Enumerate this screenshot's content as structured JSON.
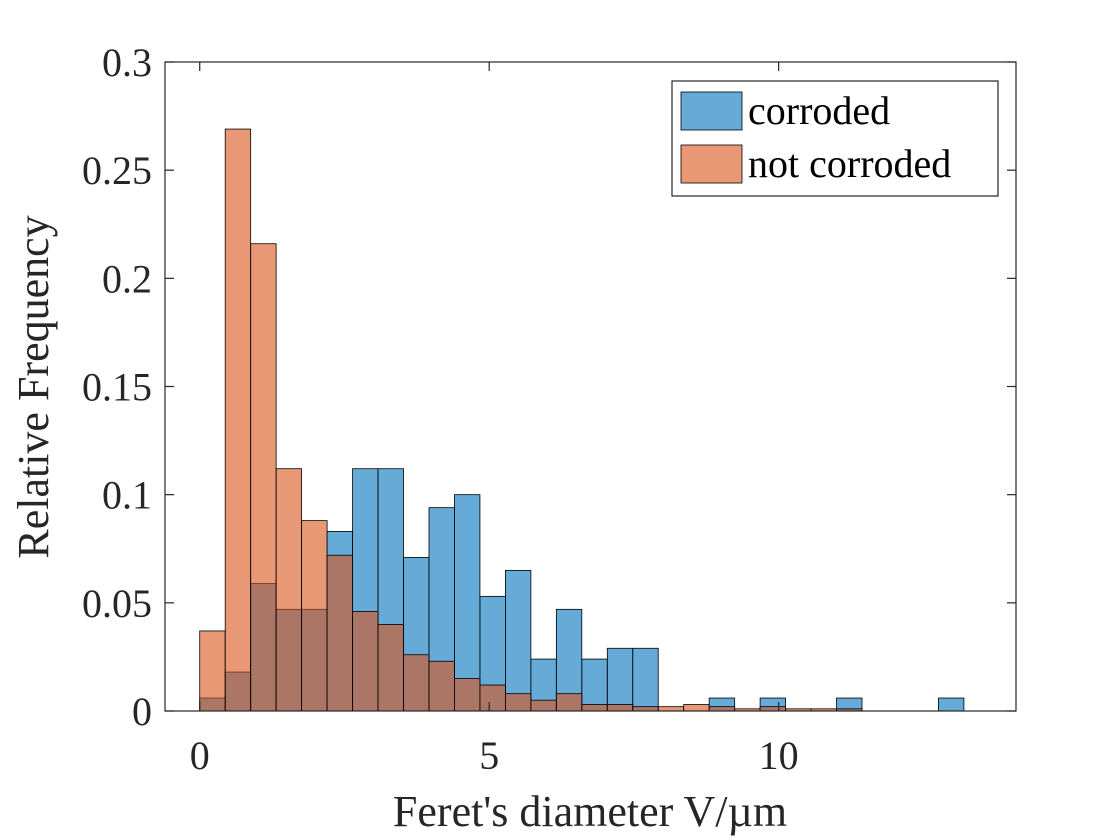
{
  "chart_data": {
    "type": "bar",
    "title": "",
    "xlabel": "Feret's diameter V/µm",
    "ylabel": "Relative Frequency",
    "xlim": [
      -0.6,
      14.1
    ],
    "ylim": [
      0,
      0.3
    ],
    "xticks": [
      0,
      5,
      10
    ],
    "yticks": [
      0,
      0.05,
      0.1,
      0.15,
      0.2,
      0.25,
      0.3
    ],
    "ytick_labels": [
      "0",
      "0.05",
      "0.1",
      "0.15",
      "0.2",
      "0.25",
      "0.3"
    ],
    "grid": false,
    "legend_position": "top-right",
    "bin_width": 0.44,
    "series": [
      {
        "name": "corroded",
        "color": "#0072BD",
        "bins": [
          {
            "x": 0.0,
            "value": 0.006
          },
          {
            "x": 0.44,
            "value": 0.018
          },
          {
            "x": 0.88,
            "value": 0.059
          },
          {
            "x": 1.32,
            "value": 0.047
          },
          {
            "x": 1.76,
            "value": 0.047
          },
          {
            "x": 2.2,
            "value": 0.083
          },
          {
            "x": 2.64,
            "value": 0.112
          },
          {
            "x": 3.08,
            "value": 0.112
          },
          {
            "x": 3.52,
            "value": 0.071
          },
          {
            "x": 3.96,
            "value": 0.094
          },
          {
            "x": 4.4,
            "value": 0.1
          },
          {
            "x": 4.84,
            "value": 0.053
          },
          {
            "x": 5.28,
            "value": 0.065
          },
          {
            "x": 5.72,
            "value": 0.024
          },
          {
            "x": 6.16,
            "value": 0.047
          },
          {
            "x": 6.6,
            "value": 0.024
          },
          {
            "x": 7.04,
            "value": 0.029
          },
          {
            "x": 7.48,
            "value": 0.029
          },
          {
            "x": 8.8,
            "value": 0.006
          },
          {
            "x": 9.68,
            "value": 0.006
          },
          {
            "x": 11.0,
            "value": 0.006
          },
          {
            "x": 12.76,
            "value": 0.006
          }
        ]
      },
      {
        "name": "not corroded",
        "color": "#D95319",
        "bins": [
          {
            "x": 0.0,
            "value": 0.037
          },
          {
            "x": 0.44,
            "value": 0.269
          },
          {
            "x": 0.88,
            "value": 0.216
          },
          {
            "x": 1.32,
            "value": 0.112
          },
          {
            "x": 1.76,
            "value": 0.088
          },
          {
            "x": 2.2,
            "value": 0.072
          },
          {
            "x": 2.64,
            "value": 0.046
          },
          {
            "x": 3.08,
            "value": 0.04
          },
          {
            "x": 3.52,
            "value": 0.026
          },
          {
            "x": 3.96,
            "value": 0.023
          },
          {
            "x": 4.4,
            "value": 0.015
          },
          {
            "x": 4.84,
            "value": 0.012
          },
          {
            "x": 5.28,
            "value": 0.008
          },
          {
            "x": 5.72,
            "value": 0.005
          },
          {
            "x": 6.16,
            "value": 0.008
          },
          {
            "x": 6.6,
            "value": 0.003
          },
          {
            "x": 7.04,
            "value": 0.003
          },
          {
            "x": 7.48,
            "value": 0.002
          },
          {
            "x": 7.92,
            "value": 0.002
          },
          {
            "x": 8.36,
            "value": 0.003
          },
          {
            "x": 8.8,
            "value": 0.002
          },
          {
            "x": 9.24,
            "value": 0.001
          },
          {
            "x": 9.68,
            "value": 0.002
          },
          {
            "x": 10.12,
            "value": 0.001
          },
          {
            "x": 10.56,
            "value": 0.001
          },
          {
            "x": 11.0,
            "value": 0.001
          }
        ]
      }
    ]
  }
}
